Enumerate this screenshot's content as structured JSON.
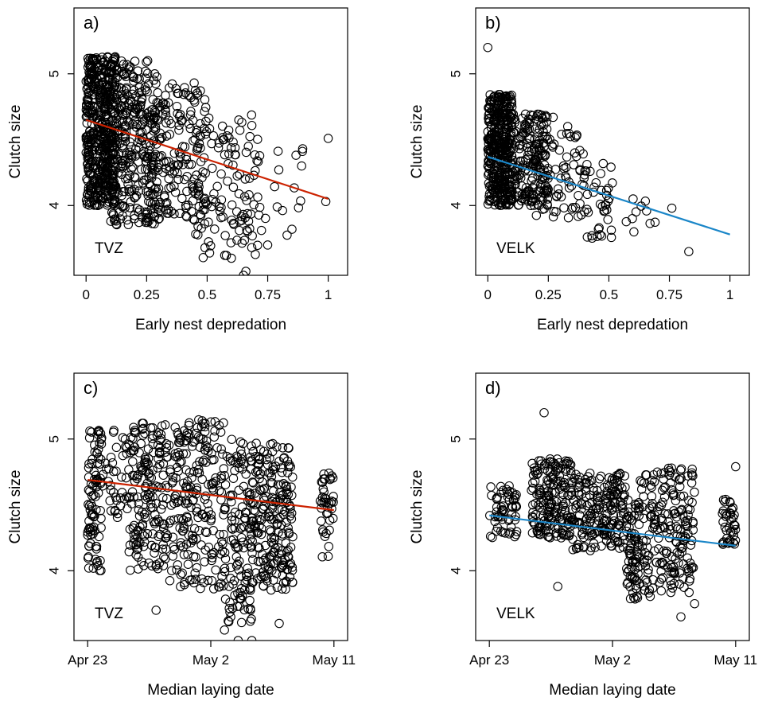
{
  "chart_data": [
    {
      "panel_label": "a)",
      "type": "scatter",
      "site_label": "TVZ",
      "xlabel": "Early nest depredation",
      "ylabel": "Clutch size",
      "x_type": "numeric",
      "xlim": [
        -0.05,
        1.08
      ],
      "ylim": [
        3.47,
        5.5
      ],
      "x_ticks": [
        0,
        0.25,
        0.5,
        0.75,
        1
      ],
      "x_tick_labels": [
        "0",
        "0.25",
        "0.5",
        "0.75",
        "1"
      ],
      "y_ticks": [
        4,
        5
      ],
      "y_tick_labels": [
        "4",
        "5"
      ],
      "fit_color": "#cc2200",
      "fit_line": {
        "x": [
          0,
          1
        ],
        "y": [
          4.65,
          4.05
        ]
      },
      "cloud": [
        {
          "x0": 0,
          "x1": 0.12,
          "y0": 4.0,
          "y1": 5.13,
          "n": 500
        },
        {
          "x0": 0.1,
          "x1": 0.3,
          "y0": 3.85,
          "y1": 5.1,
          "n": 320
        },
        {
          "x0": 0.25,
          "x1": 0.5,
          "y0": 3.85,
          "y1": 4.95,
          "n": 180
        },
        {
          "x0": 0.45,
          "x1": 0.72,
          "y0": 3.6,
          "y1": 4.7,
          "n": 110
        },
        {
          "x0": 0.65,
          "x1": 0.9,
          "y0": 3.75,
          "y1": 4.45,
          "n": 20
        }
      ],
      "outliers": [
        {
          "x": 0.65,
          "y": 3.47
        },
        {
          "x": 0.66,
          "y": 3.5
        },
        {
          "x": 0.6,
          "y": 3.6
        },
        {
          "x": 0.75,
          "y": 3.7
        },
        {
          "x": 0.51,
          "y": 3.64
        },
        {
          "x": 0.85,
          "y": 3.82
        },
        {
          "x": 1.0,
          "y": 4.51
        },
        {
          "x": 0.99,
          "y": 4.03
        },
        {
          "x": 0.89,
          "y": 4.3
        }
      ]
    },
    {
      "panel_label": "b)",
      "type": "scatter",
      "site_label": "VELK",
      "xlabel": "Early nest depredation",
      "ylabel": "Clutch size",
      "x_type": "numeric",
      "xlim": [
        -0.05,
        1.08
      ],
      "ylim": [
        3.47,
        5.5
      ],
      "x_ticks": [
        0,
        0.25,
        0.5,
        0.75,
        1
      ],
      "x_tick_labels": [
        "0",
        "0.25",
        "0.5",
        "0.75",
        "1"
      ],
      "y_ticks": [
        4,
        5
      ],
      "y_tick_labels": [
        "4",
        "5"
      ],
      "fit_color": "#1a86c8",
      "fit_line": {
        "x": [
          0,
          1
        ],
        "y": [
          4.37,
          3.78
        ]
      },
      "cloud": [
        {
          "x0": 0,
          "x1": 0.1,
          "y0": 4.0,
          "y1": 4.85,
          "n": 400
        },
        {
          "x0": 0.08,
          "x1": 0.25,
          "y0": 4.0,
          "y1": 4.7,
          "n": 200
        },
        {
          "x0": 0.2,
          "x1": 0.4,
          "y0": 3.9,
          "y1": 4.55,
          "n": 70
        },
        {
          "x0": 0.38,
          "x1": 0.52,
          "y0": 3.75,
          "y1": 4.35,
          "n": 40
        },
        {
          "x0": 0.5,
          "x1": 0.7,
          "y0": 3.75,
          "y1": 4.05,
          "n": 10
        }
      ],
      "outliers": [
        {
          "x": 0.0,
          "y": 5.2
        },
        {
          "x": 0.83,
          "y": 3.65
        },
        {
          "x": 0.76,
          "y": 3.98
        },
        {
          "x": 0.6,
          "y": 4.05
        },
        {
          "x": 0.27,
          "y": 4.67
        },
        {
          "x": 0.33,
          "y": 4.6
        }
      ]
    },
    {
      "panel_label": "c)",
      "type": "scatter",
      "site_label": "TVZ",
      "xlabel": "Median laying date",
      "ylabel": "Clutch size",
      "x_type": "date",
      "xlim": [
        "2000-04-22",
        "2000-05-12"
      ],
      "ylim": [
        3.47,
        5.5
      ],
      "x_ticks": [
        "2000-04-23",
        "2000-05-02",
        "2000-05-11"
      ],
      "x_tick_labels": [
        "Apr 23",
        "May 2",
        "May 11"
      ],
      "y_ticks": [
        4,
        5
      ],
      "y_tick_labels": [
        "4",
        "5"
      ],
      "fit_color": "#cc2200",
      "fit_line": {
        "x": [
          "2000-04-23",
          "2000-05-11"
        ],
        "y": [
          4.69,
          4.46
        ]
      },
      "cloud": [
        {
          "x0": "2000-04-23",
          "x1": "2000-04-24",
          "y0": 4.0,
          "y1": 5.07,
          "n": 90
        },
        {
          "x0": "2000-04-24",
          "x1": "2000-04-26",
          "y0": 4.4,
          "y1": 5.1,
          "n": 40
        },
        {
          "x0": "2000-04-26",
          "x1": "2000-04-29",
          "y0": 4.0,
          "y1": 5.12,
          "n": 180
        },
        {
          "x0": "2000-04-29",
          "x1": "2000-05-03",
          "y0": 3.85,
          "y1": 5.15,
          "n": 220
        },
        {
          "x0": "2000-05-03",
          "x1": "2000-05-05",
          "y0": 3.6,
          "y1": 5.0,
          "n": 130
        },
        {
          "x0": "2000-05-05",
          "x1": "2000-05-08",
          "y0": 3.85,
          "y1": 4.97,
          "n": 220
        },
        {
          "x0": "2000-05-10",
          "x1": "2000-05-11",
          "y0": 4.1,
          "y1": 4.75,
          "n": 40
        }
      ],
      "outliers": [
        {
          "x": "2000-05-04",
          "y": 3.47
        },
        {
          "x": "2000-05-05",
          "y": 3.47
        },
        {
          "x": "2000-05-03",
          "y": 3.55
        },
        {
          "x": "2000-04-28",
          "y": 3.7
        },
        {
          "x": "2000-05-07",
          "y": 3.6
        }
      ]
    },
    {
      "panel_label": "d)",
      "type": "scatter",
      "site_label": "VELK",
      "xlabel": "Median laying date",
      "ylabel": "Clutch size",
      "x_type": "date",
      "xlim": [
        "2000-04-22",
        "2000-05-12"
      ],
      "ylim": [
        3.47,
        5.5
      ],
      "x_ticks": [
        "2000-04-23",
        "2000-05-02",
        "2000-05-11"
      ],
      "x_tick_labels": [
        "Apr 23",
        "May 2",
        "May 11"
      ],
      "y_ticks": [
        4,
        5
      ],
      "y_tick_labels": [
        "4",
        "5"
      ],
      "fit_color": "#1a86c8",
      "fit_line": {
        "x": [
          "2000-04-23",
          "2000-05-11"
        ],
        "y": [
          4.42,
          4.19
        ]
      },
      "cloud": [
        {
          "x0": "2000-04-23",
          "x1": "2000-04-25",
          "y0": 4.25,
          "y1": 4.65,
          "n": 60
        },
        {
          "x0": "2000-04-26",
          "x1": "2000-04-29",
          "y0": 4.25,
          "y1": 4.85,
          "n": 180
        },
        {
          "x0": "2000-04-29",
          "x1": "2000-05-03",
          "y0": 4.15,
          "y1": 4.75,
          "n": 200
        },
        {
          "x0": "2000-05-03",
          "x1": "2000-05-04",
          "y0": 3.78,
          "y1": 4.55,
          "n": 80
        },
        {
          "x0": "2000-05-04",
          "x1": "2000-05-08",
          "y0": 3.8,
          "y1": 4.78,
          "n": 200
        },
        {
          "x0": "2000-05-10",
          "x1": "2000-05-11",
          "y0": 4.2,
          "y1": 4.55,
          "n": 40
        }
      ],
      "outliers": [
        {
          "x": "2000-04-27",
          "y": 5.2
        },
        {
          "x": "2000-05-07",
          "y": 3.65
        },
        {
          "x": "2000-04-28",
          "y": 3.88
        },
        {
          "x": "2000-05-11",
          "y": 4.79
        },
        {
          "x": "2000-05-08",
          "y": 3.75
        }
      ]
    }
  ]
}
